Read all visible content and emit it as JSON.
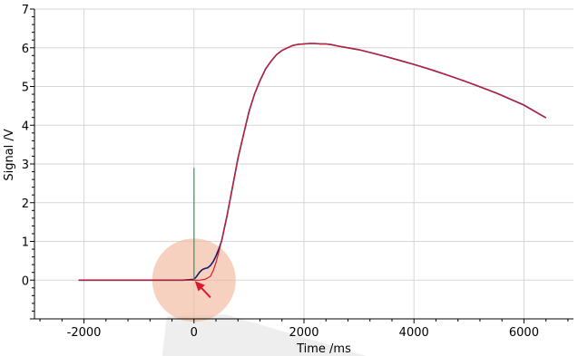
{
  "chart_data": {
    "type": "line",
    "xlabel": "Time /ms",
    "ylabel": "Signal /V",
    "xlim": [
      -2900,
      6900
    ],
    "ylim": [
      -1,
      7
    ],
    "xticks": [
      -2000,
      0,
      2000,
      4000,
      6000
    ],
    "yticks": [
      0,
      1,
      2,
      3,
      4,
      5,
      6,
      7
    ],
    "grid": true,
    "series": [
      {
        "color": "#1a1a6e",
        "x": [
          -2100,
          -1600,
          -1000,
          -500,
          -200,
          0,
          50,
          100,
          150,
          200,
          250,
          300,
          350,
          400,
          450,
          500,
          600,
          700,
          800,
          900,
          1000,
          1100,
          1200,
          1300,
          1400,
          1500,
          1600,
          1700,
          1800,
          1900,
          2000,
          2100,
          2200,
          2300,
          2400,
          2500,
          2600,
          2800,
          3000,
          3200,
          3500,
          3800,
          4000,
          4300,
          4600,
          5000,
          5500,
          6000,
          6400
        ],
        "y": [
          0.0,
          0.0,
          0.0,
          0.0,
          0.0,
          0.02,
          0.1,
          0.2,
          0.27,
          0.3,
          0.32,
          0.38,
          0.48,
          0.62,
          0.8,
          1.0,
          1.65,
          2.4,
          3.15,
          3.75,
          4.35,
          4.8,
          5.15,
          5.45,
          5.65,
          5.82,
          5.93,
          6.0,
          6.06,
          6.09,
          6.1,
          6.11,
          6.11,
          6.1,
          6.1,
          6.08,
          6.05,
          6.0,
          5.95,
          5.88,
          5.77,
          5.65,
          5.57,
          5.44,
          5.3,
          5.1,
          4.83,
          4.52,
          4.19
        ]
      },
      {
        "color": "#d41c2c",
        "x": [
          -2100,
          -1000,
          -200,
          0,
          100,
          200,
          300,
          350,
          400,
          450,
          500,
          600,
          700,
          800,
          900,
          1000,
          1100,
          1200,
          1300,
          1400,
          1500,
          1600,
          1700,
          1800,
          1900,
          2000,
          2100,
          2200,
          2300,
          2400,
          2500,
          2600,
          2800,
          3000,
          3200,
          3500,
          3800,
          4000,
          4300,
          4600,
          5000,
          5500,
          6000,
          6400
        ],
        "y": [
          0.0,
          0.0,
          0.0,
          0.0,
          0.0,
          0.02,
          0.1,
          0.25,
          0.45,
          0.72,
          1.0,
          1.65,
          2.4,
          3.15,
          3.75,
          4.35,
          4.8,
          5.15,
          5.45,
          5.65,
          5.82,
          5.93,
          6.0,
          6.06,
          6.09,
          6.1,
          6.11,
          6.11,
          6.1,
          6.1,
          6.08,
          6.05,
          6.0,
          5.95,
          5.88,
          5.77,
          5.65,
          5.57,
          5.44,
          5.3,
          5.1,
          4.83,
          4.52,
          4.19
        ]
      },
      {
        "color": "#2e9e5b",
        "x": [
          0,
          0
        ],
        "y": [
          0,
          2.9
        ]
      }
    ],
    "annotations": [
      {
        "type": "highlight-circle",
        "center": [
          0,
          0
        ],
        "color": "#f2b89c"
      },
      {
        "type": "arrow",
        "from": [
          300,
          -0.45
        ],
        "to": [
          15,
          -0.02
        ],
        "color": "#d41c2c"
      }
    ]
  }
}
